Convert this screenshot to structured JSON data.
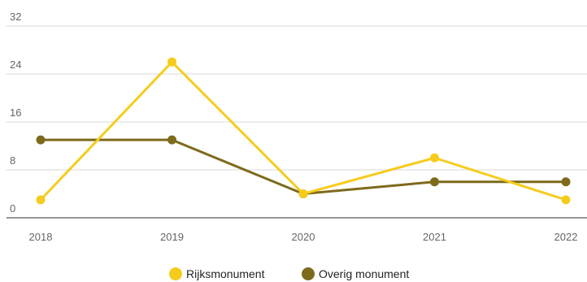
{
  "chart_data": {
    "type": "line",
    "title": "",
    "xlabel": "",
    "ylabel": "",
    "categories": [
      "2018",
      "2019",
      "2020",
      "2021",
      "2022"
    ],
    "ylim": [
      0,
      32
    ],
    "yticks": [
      "0",
      "8",
      "16",
      "24",
      "32"
    ],
    "grid": true,
    "legend_position": "bottom-center",
    "series": [
      {
        "name": "Rijksmonument",
        "color": "#f5cc1c",
        "values": [
          3,
          26,
          4,
          10,
          3
        ]
      },
      {
        "name": "Overig monument",
        "color": "#7d6a1b",
        "values": [
          13,
          13,
          4,
          6,
          6
        ]
      }
    ]
  }
}
